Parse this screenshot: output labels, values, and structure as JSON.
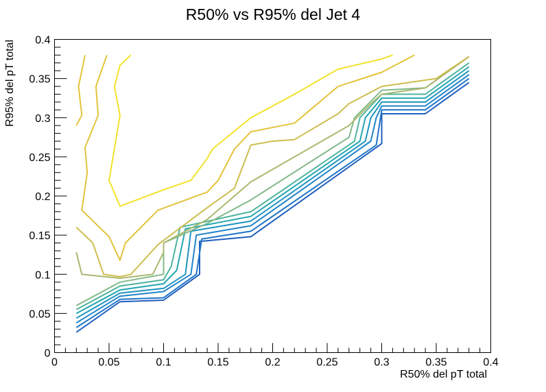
{
  "chart_data": {
    "type": "line",
    "subtype": "contour",
    "title": "R50% vs R95% del Jet 4",
    "xlabel": "R50% del pT total",
    "ylabel": "R95% del pT total",
    "xlim": [
      0,
      0.4
    ],
    "ylim": [
      0,
      0.4
    ],
    "x_ticks": [
      "0",
      "0.05",
      "0.1",
      "0.15",
      "0.2",
      "0.25",
      "0.3",
      "0.35",
      "0.4"
    ],
    "y_ticks": [
      "0",
      "0.05",
      "0.1",
      "0.15",
      "0.2",
      "0.25",
      "0.3",
      "0.35",
      "0.4"
    ],
    "grid": false,
    "legend": "none",
    "series": [
      {
        "color": "#1f5fbf",
        "points": [
          [
            0.02,
            0.026
          ],
          [
            0.06,
            0.065
          ],
          [
            0.1,
            0.067
          ],
          [
            0.133,
            0.1
          ],
          [
            0.133,
            0.142
          ],
          [
            0.18,
            0.148
          ],
          [
            0.3,
            0.267
          ],
          [
            0.3,
            0.305
          ],
          [
            0.34,
            0.305
          ],
          [
            0.38,
            0.345
          ]
        ]
      },
      {
        "color": "#1f74c8",
        "points": [
          [
            0.02,
            0.032
          ],
          [
            0.06,
            0.068
          ],
          [
            0.1,
            0.07
          ],
          [
            0.13,
            0.1
          ],
          [
            0.135,
            0.145
          ],
          [
            0.18,
            0.155
          ],
          [
            0.295,
            0.265
          ],
          [
            0.3,
            0.31
          ],
          [
            0.34,
            0.31
          ],
          [
            0.38,
            0.35
          ]
        ]
      },
      {
        "color": "#2084c9",
        "points": [
          [
            0.02,
            0.038
          ],
          [
            0.06,
            0.072
          ],
          [
            0.1,
            0.078
          ],
          [
            0.125,
            0.1
          ],
          [
            0.13,
            0.15
          ],
          [
            0.18,
            0.162
          ],
          [
            0.29,
            0.27
          ],
          [
            0.295,
            0.3
          ],
          [
            0.3,
            0.315
          ],
          [
            0.34,
            0.315
          ],
          [
            0.38,
            0.355
          ]
        ]
      },
      {
        "color": "#1e94c0",
        "points": [
          [
            0.02,
            0.044
          ],
          [
            0.06,
            0.076
          ],
          [
            0.1,
            0.082
          ],
          [
            0.12,
            0.1
          ],
          [
            0.125,
            0.155
          ],
          [
            0.18,
            0.168
          ],
          [
            0.285,
            0.27
          ],
          [
            0.29,
            0.3
          ],
          [
            0.3,
            0.32
          ],
          [
            0.34,
            0.32
          ],
          [
            0.38,
            0.36
          ]
        ]
      },
      {
        "color": "#22a6b2",
        "points": [
          [
            0.02,
            0.05
          ],
          [
            0.06,
            0.08
          ],
          [
            0.1,
            0.088
          ],
          [
            0.112,
            0.105
          ],
          [
            0.12,
            0.158
          ],
          [
            0.18,
            0.174
          ],
          [
            0.28,
            0.27
          ],
          [
            0.285,
            0.3
          ],
          [
            0.3,
            0.325
          ],
          [
            0.34,
            0.325
          ],
          [
            0.38,
            0.365
          ]
        ]
      },
      {
        "color": "#4db39e",
        "points": [
          [
            0.02,
            0.055
          ],
          [
            0.06,
            0.085
          ],
          [
            0.1,
            0.093
          ],
          [
            0.107,
            0.11
          ],
          [
            0.115,
            0.16
          ],
          [
            0.18,
            0.18
          ],
          [
            0.275,
            0.27
          ],
          [
            0.28,
            0.3
          ],
          [
            0.3,
            0.33
          ],
          [
            0.34,
            0.33
          ],
          [
            0.38,
            0.37
          ]
        ]
      },
      {
        "color": "#82b888",
        "points": [
          [
            0.02,
            0.06
          ],
          [
            0.06,
            0.09
          ],
          [
            0.1,
            0.1
          ],
          [
            0.1,
            0.127
          ],
          [
            0.1,
            0.14
          ],
          [
            0.14,
            0.165
          ],
          [
            0.18,
            0.195
          ],
          [
            0.27,
            0.275
          ],
          [
            0.275,
            0.3
          ],
          [
            0.3,
            0.335
          ],
          [
            0.34,
            0.338
          ],
          [
            0.38,
            0.378
          ]
        ]
      },
      {
        "color": "#a9b86f",
        "points": [
          [
            0.02,
            0.128
          ],
          [
            0.025,
            0.1
          ],
          [
            0.06,
            0.095
          ],
          [
            0.09,
            0.1
          ],
          [
            0.1,
            0.128
          ],
          [
            0.1,
            0.14
          ],
          [
            0.14,
            0.17
          ],
          [
            0.18,
            0.218
          ],
          [
            0.27,
            0.29
          ],
          [
            0.29,
            0.318
          ],
          [
            0.3,
            0.33
          ],
          [
            0.34,
            0.338
          ],
          [
            0.38,
            0.378
          ]
        ]
      },
      {
        "color": "#cdbd4d",
        "points": [
          [
            0.02,
            0.16
          ],
          [
            0.035,
            0.14
          ],
          [
            0.045,
            0.1
          ],
          [
            0.06,
            0.097
          ],
          [
            0.07,
            0.1
          ],
          [
            0.095,
            0.138
          ],
          [
            0.14,
            0.185
          ],
          [
            0.165,
            0.21
          ],
          [
            0.18,
            0.265
          ],
          [
            0.2,
            0.27
          ],
          [
            0.22,
            0.272
          ],
          [
            0.26,
            0.305
          ],
          [
            0.27,
            0.318
          ],
          [
            0.3,
            0.34
          ],
          [
            0.35,
            0.35
          ],
          [
            0.38,
            0.378
          ]
        ]
      },
      {
        "color": "#e3c33a",
        "points": [
          [
            0.028,
            0.38
          ],
          [
            0.022,
            0.34
          ],
          [
            0.025,
            0.303
          ],
          [
            0.02,
            0.29
          ]
        ]
      },
      {
        "color": "#e3c33a",
        "points": [
          [
            0.048,
            0.38
          ],
          [
            0.038,
            0.34
          ],
          [
            0.04,
            0.303
          ],
          [
            0.028,
            0.262
          ],
          [
            0.03,
            0.23
          ],
          [
            0.025,
            0.182
          ],
          [
            0.05,
            0.148
          ],
          [
            0.06,
            0.118
          ],
          [
            0.065,
            0.14
          ],
          [
            0.095,
            0.182
          ],
          [
            0.14,
            0.205
          ],
          [
            0.15,
            0.22
          ],
          [
            0.165,
            0.26
          ],
          [
            0.18,
            0.282
          ],
          [
            0.22,
            0.293
          ],
          [
            0.26,
            0.34
          ],
          [
            0.3,
            0.358
          ],
          [
            0.33,
            0.38
          ]
        ]
      },
      {
        "color": "#f2e22a",
        "points": [
          [
            0.07,
            0.38
          ],
          [
            0.06,
            0.367
          ],
          [
            0.055,
            0.34
          ],
          [
            0.06,
            0.303
          ],
          [
            0.05,
            0.22
          ],
          [
            0.06,
            0.187
          ],
          [
            0.1,
            0.208
          ],
          [
            0.125,
            0.22
          ],
          [
            0.14,
            0.248
          ],
          [
            0.145,
            0.26
          ],
          [
            0.18,
            0.3
          ],
          [
            0.22,
            0.33
          ],
          [
            0.26,
            0.362
          ],
          [
            0.3,
            0.375
          ],
          [
            0.31,
            0.38
          ]
        ]
      }
    ]
  }
}
